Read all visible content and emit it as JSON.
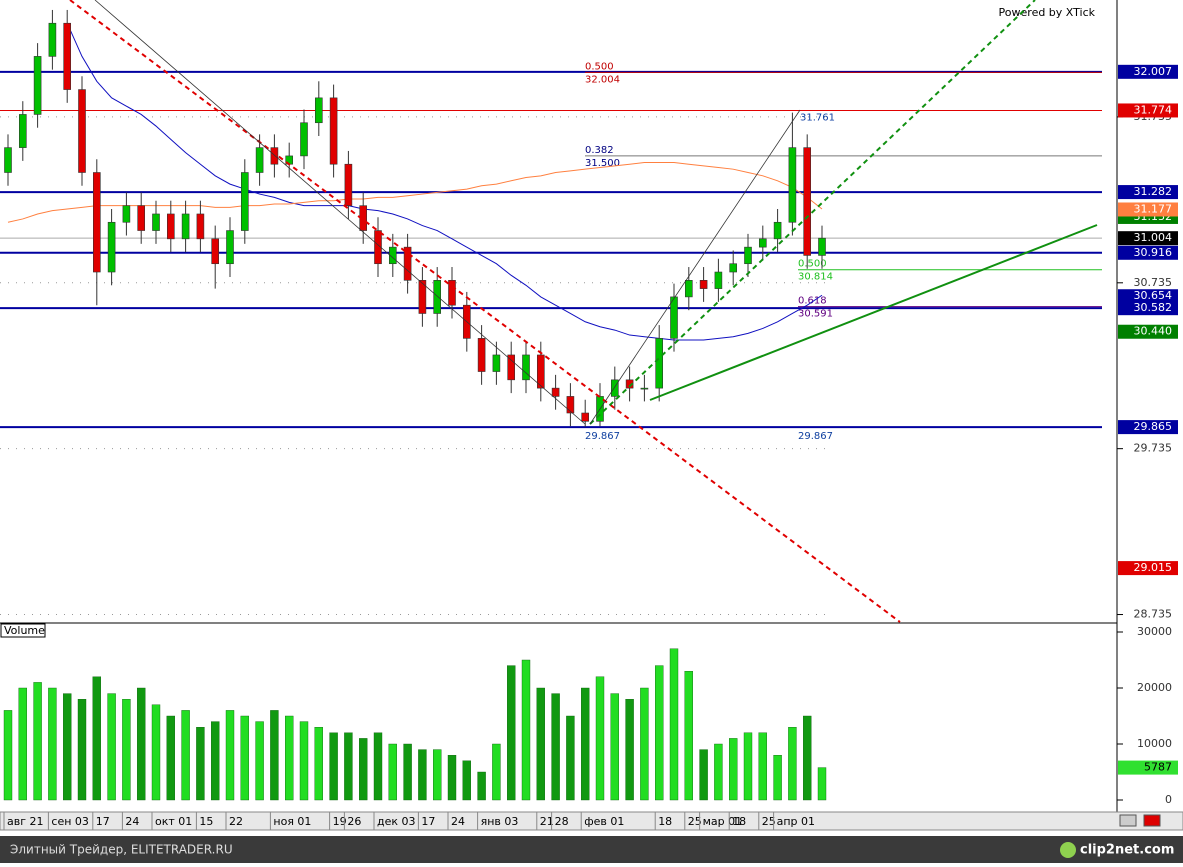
{
  "chart_data": {
    "type": "candlestick",
    "watermark": "Powered by XTick",
    "categories": [
      "авг 21",
      null,
      null,
      "сен 03",
      null,
      null,
      "17",
      null,
      "24",
      null,
      "окт 01",
      null,
      null,
      "15",
      null,
      "22",
      null,
      null,
      "ноя 01",
      null,
      null,
      null,
      "19",
      "26",
      null,
      "дек 03",
      null,
      null,
      "17",
      null,
      "24",
      null,
      "янв 03",
      null,
      null,
      null,
      "21",
      "28",
      null,
      "фев 01",
      null,
      null,
      null,
      null,
      "18",
      null,
      "25",
      "мар 01",
      null,
      "18",
      null,
      "25",
      "апр 01",
      null,
      null,
      null
    ],
    "open": [
      31.4,
      31.55,
      31.75,
      32.1,
      32.3,
      31.9,
      31.4,
      30.8,
      31.1,
      31.2,
      31.05,
      31.15,
      31.0,
      31.15,
      31.0,
      30.85,
      31.05,
      31.4,
      31.55,
      31.45,
      31.5,
      31.7,
      31.85,
      31.45,
      31.2,
      31.05,
      30.85,
      30.95,
      30.75,
      30.55,
      30.75,
      30.6,
      30.4,
      30.2,
      30.3,
      30.15,
      30.3,
      30.1,
      30.05,
      29.95,
      29.9,
      30.05,
      30.15,
      30.1,
      30.1,
      30.4,
      30.65,
      30.75,
      30.7,
      30.8,
      30.85,
      30.95,
      31.0,
      31.1,
      31.55,
      30.9
    ],
    "high": [
      31.63,
      31.83,
      32.18,
      32.38,
      32.38,
      31.98,
      31.48,
      31.18,
      31.28,
      31.28,
      31.23,
      31.23,
      31.23,
      31.23,
      31.08,
      31.13,
      31.48,
      31.63,
      31.63,
      31.58,
      31.78,
      31.95,
      31.93,
      31.53,
      31.28,
      31.13,
      31.03,
      31.03,
      30.83,
      30.83,
      30.83,
      30.68,
      30.48,
      30.38,
      30.38,
      30.38,
      30.38,
      30.18,
      30.13,
      30.03,
      30.13,
      30.23,
      30.23,
      30.18,
      30.48,
      30.73,
      30.83,
      30.83,
      30.88,
      30.93,
      31.03,
      31.08,
      31.18,
      31.761,
      31.63,
      31.08
    ],
    "low": [
      31.32,
      31.47,
      31.67,
      32.02,
      31.82,
      31.32,
      30.6,
      30.72,
      31.02,
      30.97,
      30.97,
      30.92,
      30.92,
      30.92,
      30.7,
      30.77,
      30.97,
      31.32,
      31.37,
      31.37,
      31.42,
      31.62,
      31.37,
      31.12,
      30.97,
      30.77,
      30.77,
      30.67,
      30.47,
      30.47,
      30.52,
      30.32,
      30.12,
      30.12,
      30.07,
      30.07,
      30.02,
      29.97,
      29.87,
      29.867,
      29.87,
      29.97,
      30.02,
      30.02,
      30.02,
      30.32,
      30.57,
      30.62,
      30.62,
      30.72,
      30.77,
      30.87,
      30.92,
      31.02,
      30.82,
      30.82
    ],
    "close": [
      31.55,
      31.75,
      32.1,
      32.3,
      31.9,
      31.4,
      30.8,
      31.1,
      31.2,
      31.05,
      31.15,
      31.0,
      31.15,
      31.0,
      30.85,
      31.05,
      31.4,
      31.55,
      31.45,
      31.5,
      31.7,
      31.85,
      31.45,
      31.2,
      31.05,
      30.85,
      30.95,
      30.75,
      30.55,
      30.75,
      30.6,
      30.4,
      30.2,
      30.3,
      30.15,
      30.3,
      30.1,
      30.05,
      29.95,
      29.9,
      30.05,
      30.15,
      30.1,
      30.1,
      30.4,
      30.65,
      30.75,
      30.7,
      30.8,
      30.85,
      30.95,
      31.0,
      31.1,
      31.55,
      30.9,
      31.004
    ],
    "up_color": "#00c000",
    "down_color": "#e00000",
    "moving_averages": [
      {
        "color": "#1010c0",
        "values": [
          null,
          null,
          null,
          null,
          32.3,
          32.1,
          31.95,
          31.85,
          31.8,
          31.75,
          31.68,
          31.6,
          31.52,
          31.45,
          31.38,
          31.33,
          31.3,
          31.27,
          31.25,
          31.22,
          31.2,
          31.2,
          31.2,
          31.2,
          31.18,
          31.17,
          31.15,
          31.12,
          31.08,
          31.05,
          31.0,
          30.95,
          30.9,
          30.85,
          30.78,
          30.72,
          30.65,
          30.6,
          30.55,
          30.5,
          30.47,
          30.45,
          30.42,
          30.41,
          30.4,
          30.39,
          30.39,
          30.39,
          30.4,
          30.41,
          30.43,
          30.46,
          30.5,
          30.55,
          30.6,
          30.66
        ]
      },
      {
        "color": "#ff8040",
        "values": [
          31.1,
          31.12,
          31.15,
          31.17,
          31.18,
          31.19,
          31.2,
          31.2,
          31.2,
          31.2,
          31.2,
          31.2,
          31.2,
          31.2,
          31.19,
          31.19,
          31.2,
          31.2,
          31.21,
          31.21,
          31.22,
          31.23,
          31.23,
          31.24,
          31.24,
          31.25,
          31.25,
          31.26,
          31.27,
          31.28,
          31.29,
          31.3,
          31.32,
          31.33,
          31.35,
          31.37,
          31.38,
          31.4,
          31.41,
          31.42,
          31.43,
          31.44,
          31.45,
          31.46,
          31.46,
          31.46,
          31.45,
          31.44,
          31.43,
          31.42,
          31.4,
          31.38,
          31.35,
          31.31,
          31.25,
          31.18
        ]
      }
    ],
    "ylim": [
      28.69,
      32.44
    ],
    "yticks": [
      31.735,
      30.735,
      29.735,
      28.735
    ],
    "grid": true,
    "price_labels": [
      {
        "value": 32.007,
        "color": "#0000a0",
        "line": true
      },
      {
        "value": 31.774,
        "color": "#e00000",
        "line": true
      },
      {
        "value": 31.282,
        "color": "#0000a0",
        "line": true
      },
      {
        "value": 31.132,
        "color": "#008000",
        "line": false
      },
      {
        "value": 31.177,
        "color": "#ff7f40",
        "line": false
      },
      {
        "value": 31.004,
        "color": "#000000",
        "line": true
      },
      {
        "value": 30.916,
        "color": "#0000a0",
        "line": true
      },
      {
        "value": 30.654,
        "color": "#0000a0",
        "line": false
      },
      {
        "value": 30.582,
        "color": "#0000a0",
        "line": true
      },
      {
        "value": {
          "value": 30.44,
          "label": "30.440"
        },
        "color": "#008000",
        "line": false
      },
      {
        "value": 29.865,
        "color": "#0000a0",
        "line": true
      },
      {
        "value": 29.015,
        "color": "#e00000",
        "line": false
      }
    ],
    "fibonacci": [
      {
        "ratio": {
          "value": 0.5,
          "label": "0.500"
        },
        "price": 32.004,
        "color": "#c00000"
      },
      {
        "ratio": {
          "value": 0.382,
          "label": "0.382"
        },
        "price": {
          "value": 31.5,
          "label": "31.500"
        },
        "color": "#000080"
      },
      {
        "ratio": {
          "value": 0.5,
          "label": "0.500"
        },
        "price": 30.814,
        "color": "#20c020"
      },
      {
        "ratio": {
          "value": 0.618,
          "label": "0.618"
        },
        "price": 30.591,
        "color": "#600080"
      }
    ],
    "point_labels": [
      31.761,
      29.867,
      29.867
    ],
    "volume": {
      "label": "Volume",
      "values": [
        16000,
        20000,
        21000,
        20000,
        19000,
        18000,
        22000,
        19000,
        18000,
        20000,
        17000,
        15000,
        16000,
        13000,
        14000,
        16000,
        15000,
        14000,
        16000,
        15000,
        14000,
        13000,
        12000,
        12000,
        11000,
        12000,
        10000,
        10000,
        9000,
        9000,
        8000,
        7000,
        5000,
        10000,
        24000,
        25000,
        20000,
        19000,
        15000,
        20000,
        22000,
        19000,
        18000,
        20000,
        24000,
        27000,
        23000,
        9000,
        10000,
        11000,
        12000,
        12000,
        8000,
        13000,
        15000,
        5787
      ],
      "ylim": [
        0,
        31250
      ],
      "yticks": [
        30000,
        20000,
        10000,
        0
      ],
      "last": 5787,
      "last_color": "#30e030"
    },
    "footer": {
      "left": "Элитный Трейдер, ELITETRADER.RU",
      "right": "clip2net.com"
    }
  }
}
